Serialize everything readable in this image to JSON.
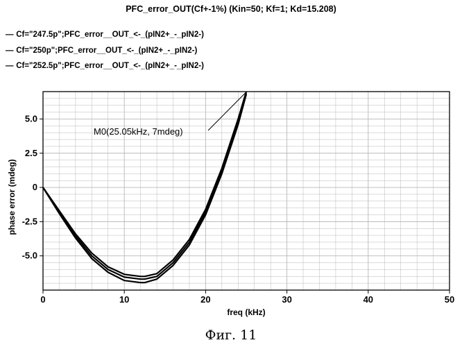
{
  "chart_data": {
    "type": "line",
    "title": "PFC_error_OUT(Cf+-1%) (Kin=50; Kf=1; Kd=15.208)",
    "xlabel": "freq (kHz)",
    "ylabel": "phase error (mdeg)",
    "xlim": [
      0,
      50
    ],
    "ylim": [
      -7.5,
      7
    ],
    "xticks": [
      0,
      10,
      20,
      30,
      40,
      50
    ],
    "yticks": [
      5.0,
      2.5,
      0,
      -2.5,
      -5.0
    ],
    "xtick_labels": [
      "0",
      "10",
      "20",
      "30",
      "40",
      "50"
    ],
    "ytick_labels": [
      "5.0",
      "2.5",
      "0",
      "-2.5",
      "-5.0"
    ],
    "grid": true,
    "legend_position": "top-left",
    "series": [
      {
        "name": "Cf=\"247.5p\";PFC_error__OUT_<-_(pIN2+_-_pIN2-)",
        "x": [
          0,
          2,
          4,
          6,
          8,
          10,
          12,
          12.5,
          14,
          16,
          18,
          20,
          22,
          24,
          25
        ],
        "y": [
          0,
          -1.7,
          -3.4,
          -4.8,
          -5.8,
          -6.35,
          -6.5,
          -6.5,
          -6.3,
          -5.3,
          -3.8,
          -1.6,
          1.4,
          5.0,
          7.0
        ]
      },
      {
        "name": "Cf=\"250p\";PFC_error__OUT_<-_(pIN2+_-_pIN2-)",
        "x": [
          0,
          2,
          4,
          6,
          8,
          10,
          12,
          12.5,
          14,
          16,
          18,
          20,
          22,
          24,
          25
        ],
        "y": [
          0,
          -1.8,
          -3.55,
          -5.0,
          -6.0,
          -6.55,
          -6.7,
          -6.7,
          -6.5,
          -5.5,
          -4.0,
          -1.8,
          1.2,
          4.8,
          6.9
        ]
      },
      {
        "name": "Cf=\"252.5p\";PFC_error__OUT_<-_(pIN2+_-_pIN2-)",
        "x": [
          0,
          2,
          4,
          6,
          8,
          10,
          12,
          12.5,
          14,
          16,
          18,
          20,
          22,
          24,
          25
        ],
        "y": [
          0,
          -1.9,
          -3.7,
          -5.2,
          -6.2,
          -6.8,
          -6.95,
          -6.95,
          -6.7,
          -5.7,
          -4.2,
          -2.0,
          1.0,
          4.6,
          6.8
        ]
      }
    ],
    "annotation": {
      "text": "M0(25.05kHz, 7mdeg)",
      "x": 25.05,
      "y": 7
    }
  },
  "caption": "Фиг. 11",
  "colors": {
    "curve": "#000000",
    "grid": "#b8b8b8",
    "background": "#ffffff"
  }
}
